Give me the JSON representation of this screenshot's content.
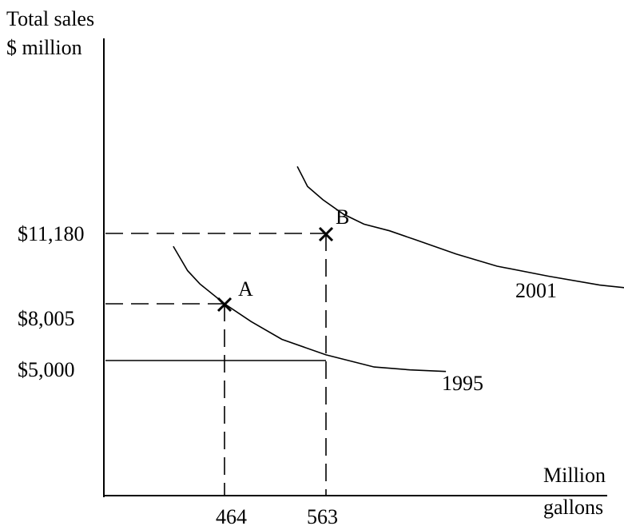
{
  "chart_data": {
    "type": "line",
    "ylabel": [
      "Total sales",
      "$ million"
    ],
    "xlabel": [
      "Million",
      "gallons"
    ],
    "x_ticks": [
      "464",
      "563"
    ],
    "y_ticks": [
      "$11,180",
      "$8,005",
      "$5,000"
    ],
    "series": [
      {
        "name": "1995",
        "points": [
          [
            414,
            10600
          ],
          [
            428,
            9500
          ],
          [
            440,
            8900
          ],
          [
            464,
            8005
          ],
          [
            490,
            7200
          ],
          [
            520,
            6400
          ],
          [
            563,
            5700
          ],
          [
            610,
            5150
          ],
          [
            645,
            5020
          ],
          [
            680,
            4950
          ]
        ]
      },
      {
        "name": "2001",
        "points": [
          [
            535,
            14200
          ],
          [
            545,
            13300
          ],
          [
            560,
            12700
          ],
          [
            580,
            12050
          ],
          [
            600,
            11600
          ],
          [
            625,
            11300
          ],
          [
            650,
            10900
          ],
          [
            690,
            10250
          ],
          [
            730,
            9700
          ],
          [
            780,
            9250
          ],
          [
            830,
            8850
          ],
          [
            860,
            8700
          ],
          [
            900,
            8650
          ]
        ]
      }
    ],
    "points": [
      {
        "label": "A",
        "x": 464,
        "y": 8005
      },
      {
        "label": "B",
        "x": 563,
        "y": 11180
      }
    ],
    "reference_line_y": 5000
  }
}
